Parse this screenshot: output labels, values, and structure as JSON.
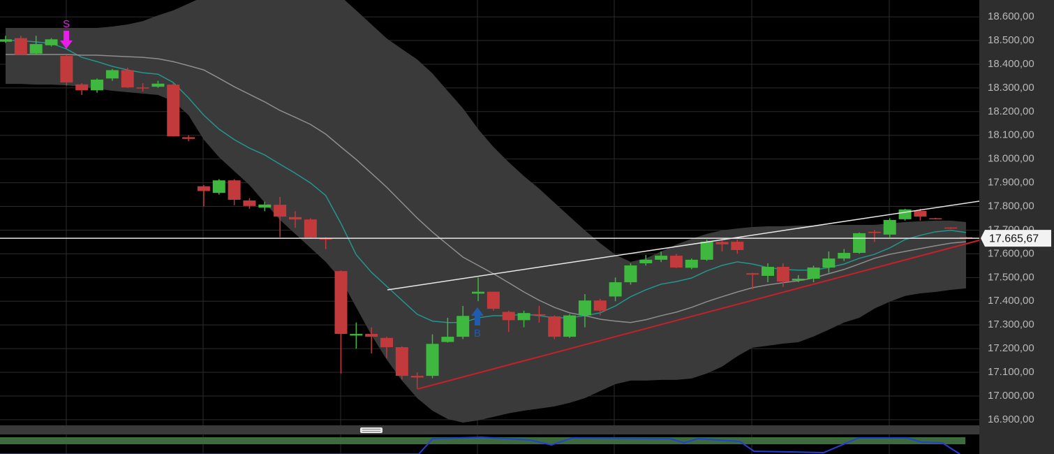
{
  "chart_data": {
    "type": "candlestick",
    "up_color": "#3fb83f",
    "down_color": "#c23a3c",
    "ylim": [
      16882,
      18671
    ],
    "yticks": [
      {
        "value": 16900,
        "label": "16.900,00"
      },
      {
        "value": 17000,
        "label": "17.000,00"
      },
      {
        "value": 17100,
        "label": "17.100,00"
      },
      {
        "value": 17200,
        "label": "17.200,00"
      },
      {
        "value": 17300,
        "label": "17.300,00"
      },
      {
        "value": 17400,
        "label": "17.400,00"
      },
      {
        "value": 17500,
        "label": "17.500,00"
      },
      {
        "value": 17600,
        "label": "17.600,00"
      },
      {
        "value": 17700,
        "label": "17.700,00"
      },
      {
        "value": 17800,
        "label": "17.800,00"
      },
      {
        "value": 17900,
        "label": "17.900,00"
      },
      {
        "value": 18000,
        "label": "18.000,00"
      },
      {
        "value": 18100,
        "label": "18.100,00"
      },
      {
        "value": 18200,
        "label": "18.200,00"
      },
      {
        "value": 18300,
        "label": "18.300,00"
      },
      {
        "value": 18400,
        "label": "18.400,00"
      },
      {
        "value": 18500,
        "label": "18.500,00"
      },
      {
        "value": 18600,
        "label": "18.600,00"
      }
    ],
    "grid": true,
    "open": [
      18495,
      18510,
      18445,
      18480,
      18435,
      18315,
      18290,
      18340,
      18375,
      18302,
      18305,
      18314,
      18092,
      17885,
      17857,
      17910,
      17825,
      17795,
      17807,
      17755,
      17745,
      17665,
      17527,
      17255,
      17262,
      17245,
      17206,
      17085,
      17085,
      17228,
      17250,
      17432,
      17440,
      17355,
      17320,
      17345,
      17336,
      17250,
      17340,
      17403,
      17420,
      17480,
      17560,
      17575,
      17592,
      17541,
      17575,
      17650,
      17651,
      17518,
      17507,
      17545,
      17487,
      17495,
      17542,
      17580,
      17604,
      17693,
      17681,
      17746,
      17781,
      17750,
      17711,
      17670
    ],
    "high": [
      18520,
      18520,
      18520,
      18510,
      18440,
      18320,
      18340,
      18380,
      18385,
      18320,
      18330,
      18320,
      18100,
      17890,
      17915,
      17915,
      17835,
      17820,
      17840,
      17780,
      17750,
      17670,
      17530,
      17310,
      17290,
      17250,
      17210,
      17100,
      17260,
      17330,
      17380,
      17500,
      17440,
      17360,
      17360,
      17380,
      17340,
      17345,
      17430,
      17410,
      17500,
      17560,
      17595,
      17610,
      17600,
      17580,
      17660,
      17660,
      17660,
      17520,
      17560,
      17560,
      17510,
      17550,
      17610,
      17620,
      17690,
      17700,
      17750,
      17790,
      17790,
      17752,
      17712,
      17672
    ],
    "low": [
      18490,
      18440,
      18440,
      18475,
      18310,
      18270,
      18280,
      18330,
      18300,
      18285,
      18300,
      18095,
      18075,
      17800,
      17850,
      17805,
      17790,
      17780,
      17670,
      17710,
      17665,
      17620,
      17095,
      17200,
      17180,
      17160,
      17070,
      17030,
      17075,
      17225,
      17240,
      17400,
      17360,
      17270,
      17290,
      17310,
      17240,
      17245,
      17290,
      17340,
      17400,
      17470,
      17550,
      17565,
      17540,
      17535,
      17570,
      17610,
      17600,
      17450,
      17480,
      17460,
      17480,
      17480,
      17520,
      17570,
      17600,
      17650,
      17670,
      17740,
      17740,
      17745,
      17705,
      17665
    ],
    "close": [
      18505,
      18440,
      18485,
      18505,
      18323,
      18290,
      18335,
      18375,
      18302,
      18300,
      18318,
      18096,
      18085,
      17865,
      17910,
      17828,
      17802,
      17808,
      17757,
      17745,
      17669,
      17660,
      17262,
      17262,
      17250,
      17206,
      17085,
      17078,
      17220,
      17250,
      17338,
      17440,
      17368,
      17320,
      17350,
      17340,
      17250,
      17340,
      17403,
      17360,
      17480,
      17551,
      17575,
      17592,
      17542,
      17575,
      17651,
      17640,
      17616,
      17512,
      17545,
      17483,
      17495,
      17542,
      17580,
      17604,
      17687,
      17688,
      17743,
      17787,
      17757,
      17747,
      17708,
      17667
    ],
    "bands": {
      "color": "#3a3a3a",
      "upper": [
        18553,
        18553,
        18553,
        18553,
        18553,
        18553,
        18553,
        18559,
        18568,
        18582,
        18606,
        18627,
        18656,
        18685,
        18715,
        18730,
        18744,
        18744,
        18744,
        18744,
        18735,
        18715,
        18685,
        18627,
        18568,
        18509,
        18464,
        18420,
        18361,
        18287,
        18214,
        18126,
        18051,
        17987,
        17928,
        17875,
        17816,
        17757,
        17699,
        17645,
        17596,
        17566,
        17581,
        17610,
        17639,
        17663,
        17684,
        17699,
        17707,
        17713,
        17716,
        17716,
        17719,
        17719,
        17722,
        17722,
        17722,
        17722,
        17728,
        17734,
        17737,
        17740,
        17740,
        17734
      ],
      "lower": [
        18317,
        18317,
        18314,
        18314,
        18311,
        18305,
        18297,
        18288,
        18282,
        18276,
        18270,
        18244,
        18185,
        18082,
        18008,
        17949,
        17890,
        17816,
        17743,
        17684,
        17625,
        17566,
        17492,
        17374,
        17257,
        17154,
        17065,
        16991,
        16938,
        16903,
        16888,
        16897,
        16912,
        16927,
        16938,
        16947,
        16956,
        16971,
        16991,
        17021,
        17050,
        17065,
        17065,
        17068,
        17068,
        17074,
        17095,
        17124,
        17168,
        17204,
        17212,
        17221,
        17227,
        17251,
        17280,
        17310,
        17330,
        17369,
        17398,
        17422,
        17433,
        17439,
        17448,
        17454
      ]
    },
    "overlays": [
      {
        "color": "#23968f",
        "values": [
          18500,
          18500,
          18494,
          18488,
          18464,
          18429,
          18411,
          18391,
          18376,
          18364,
          18358,
          18323,
          18258,
          18185,
          18126,
          18082,
          18046,
          18017,
          17978,
          17940,
          17899,
          17846,
          17728,
          17596,
          17522,
          17463,
          17404,
          17345,
          17316,
          17310,
          17310,
          17330,
          17339,
          17339,
          17345,
          17339,
          17330,
          17330,
          17339,
          17351,
          17380,
          17419,
          17448,
          17472,
          17483,
          17498,
          17528,
          17551,
          17566,
          17557,
          17542,
          17534,
          17531,
          17531,
          17542,
          17557,
          17581,
          17598,
          17625,
          17660,
          17678,
          17693,
          17699,
          17690
        ]
      },
      {
        "color": "#8e8e8e",
        "values": [
          18441,
          18441,
          18441,
          18441,
          18441,
          18438,
          18438,
          18435,
          18432,
          18429,
          18423,
          18411,
          18394,
          18376,
          18341,
          18305,
          18273,
          18241,
          18205,
          18176,
          18146,
          18105,
          18051,
          17998,
          17940,
          17881,
          17816,
          17751,
          17692,
          17639,
          17586,
          17551,
          17516,
          17478,
          17439,
          17404,
          17374,
          17351,
          17339,
          17324,
          17316,
          17310,
          17322,
          17339,
          17354,
          17374,
          17398,
          17419,
          17439,
          17457,
          17469,
          17478,
          17486,
          17498,
          17516,
          17534,
          17557,
          17581,
          17598,
          17610,
          17622,
          17634,
          17645,
          17651
        ]
      }
    ],
    "last_price": {
      "value": 17665.67,
      "label": "17.665,67"
    },
    "signals": [
      {
        "label": "S",
        "color": "#e620e6"
      },
      {
        "label": "B",
        "color": "#1f5cb0"
      }
    ]
  }
}
